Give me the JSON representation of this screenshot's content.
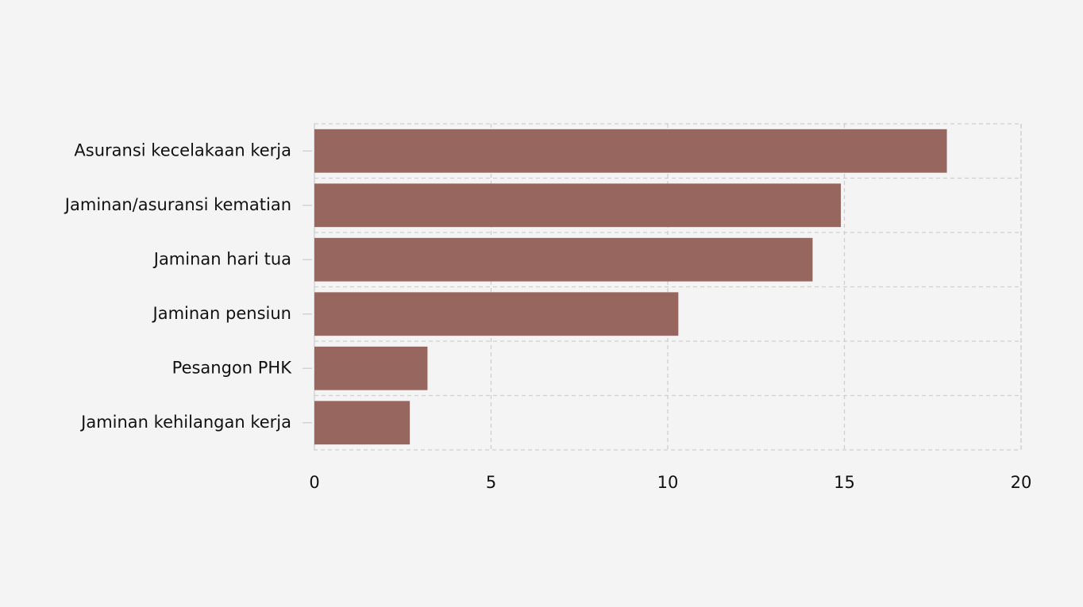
{
  "chart_data": {
    "type": "hbar",
    "categories": [
      "Asuransi kecelakaan kerja",
      "Jaminan/asuransi kematian",
      "Jaminan hari tua",
      "Jaminan pensiun",
      "Pesangon PHK",
      "Jaminan kehilangan kerja"
    ],
    "values": [
      17.9,
      14.9,
      14.1,
      10.3,
      3.2,
      2.7
    ],
    "color": "#97665f",
    "xlim": [
      0,
      20
    ],
    "xticks": [
      0,
      5,
      10,
      15,
      20
    ],
    "grid": true
  }
}
